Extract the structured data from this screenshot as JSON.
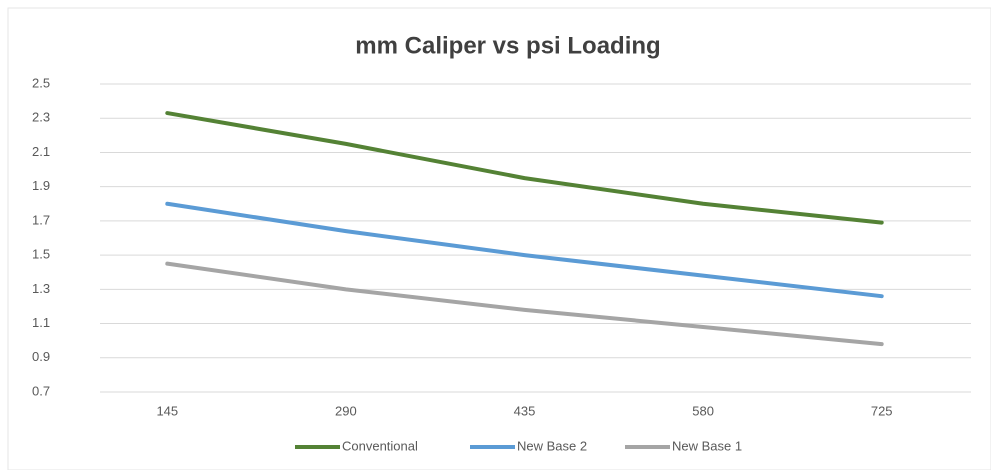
{
  "chart_data": {
    "type": "line",
    "title": "mm Caliper vs psi Loading",
    "categories": [
      "145",
      "290",
      "435",
      "580",
      "725"
    ],
    "series": [
      {
        "name": "Conventional",
        "color": "#548235",
        "values": [
          2.33,
          2.15,
          1.95,
          1.8,
          1.69
        ]
      },
      {
        "name": "New Base 2",
        "color": "#5b9bd5",
        "values": [
          1.8,
          1.64,
          1.5,
          1.38,
          1.26
        ]
      },
      {
        "name": "New Base 1",
        "color": "#a5a5a5",
        "values": [
          1.45,
          1.3,
          1.18,
          1.08,
          0.98
        ]
      }
    ],
    "ylim": [
      0.7,
      2.5
    ],
    "yticks": [
      0.7,
      0.9,
      1.1,
      1.3,
      1.5,
      1.7,
      1.9,
      2.1,
      2.3,
      2.5
    ],
    "grid": true,
    "legend": "bottom"
  }
}
